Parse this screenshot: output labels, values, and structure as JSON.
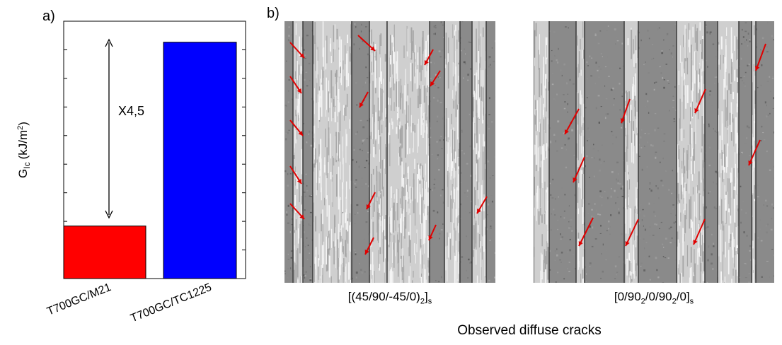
{
  "panel_a": {
    "label": "a)",
    "annotation": "X4,5",
    "ylabel_main": "G",
    "ylabel_sub": "Ic",
    "ylabel_unit": "(kJ/m",
    "ylabel_sup": "2",
    "ylabel_close": ")"
  },
  "panel_b": {
    "label": "b)",
    "caption_left_parts": [
      "[(45/90/-45/0)",
      "2",
      "]",
      "s"
    ],
    "caption_right_parts": [
      "[0/90",
      "2",
      "/0/90",
      "2",
      "/0]",
      "s"
    ],
    "bottom_caption": "Observed diffuse cracks",
    "arrow_color": "#e00000"
  },
  "chart_data": {
    "type": "bar",
    "categories": [
      "T700GC/M21",
      "T700GC/TC1225"
    ],
    "values": [
      1,
      4.5
    ],
    "colors": [
      "#ff0000",
      "#0000ff"
    ],
    "ratio_annotation": "X4,5",
    "xlabel": "",
    "ylabel": "G_Ic (kJ/m^2)",
    "ylim": [
      0,
      4.9
    ],
    "grid": false
  }
}
